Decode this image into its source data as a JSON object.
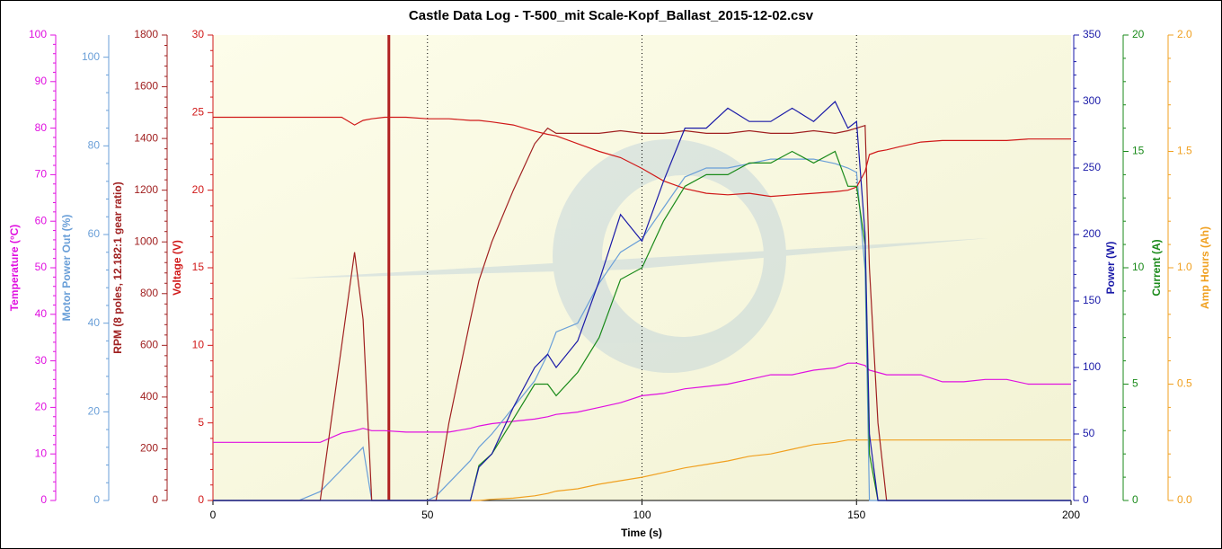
{
  "chart_data": {
    "type": "line",
    "title": "Castle Data Log - T-500_mit Scale-Kopf_Ballast_2015-12-02.csv",
    "x_label": "Time (s)",
    "xlim": [
      0,
      200
    ],
    "xticks": [
      0,
      50,
      100,
      150,
      200
    ],
    "grid": true,
    "cursor": 41,
    "x": [
      0,
      5,
      10,
      15,
      20,
      25,
      30,
      33,
      35,
      37,
      40,
      45,
      50,
      52,
      55,
      60,
      62,
      65,
      70,
      75,
      78,
      80,
      85,
      90,
      95,
      100,
      105,
      110,
      115,
      120,
      125,
      130,
      135,
      140,
      145,
      148,
      150,
      152,
      153,
      155,
      157,
      160,
      165,
      170,
      175,
      180,
      185,
      190,
      195,
      200
    ],
    "series": [
      {
        "name": "Temperature (°C)",
        "color": "#e010e0",
        "side": "left",
        "ylim": [
          0,
          100
        ],
        "yticks": [
          0,
          10,
          20,
          30,
          40,
          50,
          60,
          70,
          80,
          90,
          100
        ],
        "values": [
          12.5,
          12.5,
          12.5,
          12.5,
          12.5,
          12.5,
          14.5,
          15,
          15.5,
          15,
          15,
          14.7,
          14.7,
          14.7,
          14.7,
          15.5,
          16,
          16.5,
          17,
          17.5,
          18,
          18.5,
          19,
          20,
          21,
          22.5,
          23,
          24,
          24.5,
          25,
          26,
          27,
          27,
          28,
          28.5,
          29.5,
          29.5,
          29,
          28,
          27.5,
          27,
          27,
          27,
          25.5,
          25.5,
          26,
          26,
          25,
          25,
          25
        ]
      },
      {
        "name": "Motor Power Out (%)",
        "color": "#6a9fd8",
        "side": "left",
        "ylim": [
          0,
          105
        ],
        "yticks": [
          0,
          20,
          40,
          60,
          80,
          100
        ],
        "values": [
          0,
          0,
          0,
          0,
          0,
          2,
          7,
          10,
          12,
          0,
          0,
          0,
          0,
          1,
          4,
          9,
          12,
          15,
          21,
          27,
          33,
          38,
          40,
          49,
          56,
          59,
          66,
          73,
          75,
          75,
          76,
          77,
          77,
          77,
          76,
          75,
          74,
          52,
          0,
          0,
          0,
          0,
          0,
          0,
          0,
          0,
          0,
          0,
          0,
          0
        ]
      },
      {
        "name": "RPM (8 poles, 12.182:1 gear ratio)",
        "color": "#a02020",
        "side": "left",
        "ylim": [
          0,
          1800
        ],
        "yticks": [
          0,
          200,
          400,
          600,
          800,
          1000,
          1200,
          1400,
          1600,
          1800
        ],
        "values": [
          0,
          0,
          0,
          0,
          0,
          0,
          600,
          960,
          700,
          0,
          0,
          0,
          0,
          0,
          300,
          700,
          850,
          1000,
          1200,
          1380,
          1440,
          1420,
          1420,
          1420,
          1430,
          1420,
          1420,
          1430,
          1420,
          1420,
          1430,
          1420,
          1420,
          1430,
          1420,
          1430,
          1440,
          1450,
          900,
          300,
          0,
          0,
          0,
          0,
          0,
          0,
          0,
          0,
          0,
          0
        ]
      },
      {
        "name": "Voltage (V)",
        "color": "#d01818",
        "side": "left",
        "ylim": [
          0,
          30
        ],
        "yticks": [
          0,
          5,
          10,
          15,
          20,
          25,
          30
        ],
        "values": [
          24.7,
          24.7,
          24.7,
          24.7,
          24.7,
          24.7,
          24.7,
          24.2,
          24.5,
          24.6,
          24.7,
          24.7,
          24.6,
          24.6,
          24.6,
          24.5,
          24.5,
          24.4,
          24.2,
          23.8,
          23.6,
          23.5,
          23,
          22.5,
          22.1,
          21.4,
          20.6,
          20.1,
          19.8,
          19.7,
          19.8,
          19.6,
          19.7,
          19.8,
          19.9,
          20,
          20.2,
          21.2,
          22.3,
          22.5,
          22.6,
          22.8,
          23.1,
          23.2,
          23.2,
          23.2,
          23.2,
          23.3,
          23.3,
          23.3
        ]
      },
      {
        "name": "Power (W)",
        "color": "#1a1aa8",
        "side": "right",
        "ylim": [
          0,
          350
        ],
        "yticks": [
          0,
          50,
          100,
          150,
          200,
          250,
          300,
          350
        ],
        "values": [
          0,
          0,
          0,
          0,
          0,
          0,
          0,
          0,
          0,
          0,
          0,
          0,
          0,
          0,
          0,
          0,
          25,
          35,
          70,
          100,
          110,
          100,
          120,
          165,
          215,
          195,
          240,
          280,
          280,
          295,
          285,
          285,
          295,
          285,
          300,
          280,
          285,
          200,
          50,
          0,
          0,
          0,
          0,
          0,
          0,
          0,
          0,
          0,
          0,
          0
        ]
      },
      {
        "name": "Current (A)",
        "color": "#1a8a1a",
        "side": "right",
        "ylim": [
          0,
          20
        ],
        "yticks": [
          0,
          5,
          10,
          15,
          20
        ],
        "values": [
          0,
          0,
          0,
          0,
          0,
          0,
          0,
          0,
          0,
          0,
          0,
          0,
          0,
          0,
          0,
          0,
          1.5,
          2,
          3.5,
          5,
          5,
          4.5,
          5.5,
          7,
          9.5,
          10,
          12,
          13.5,
          14,
          14,
          14.5,
          14.5,
          15,
          14.5,
          15,
          13.5,
          13.5,
          11,
          2,
          0,
          0,
          0,
          0,
          0,
          0,
          0,
          0,
          0,
          0,
          0
        ]
      },
      {
        "name": "Amp Hours (Ah)",
        "color": "#f0a020",
        "side": "right",
        "ylim": [
          0,
          2
        ],
        "yticks": [
          {
            "value": 0,
            "label": "0.0"
          },
          0.5,
          {
            "value": 1,
            "label": "1.0"
          },
          1.5,
          {
            "value": 2,
            "label": "2.0"
          }
        ],
        "values": [
          0,
          0,
          0,
          0,
          0,
          0,
          0,
          0,
          0,
          0,
          0,
          0,
          0,
          0,
          0,
          0,
          0,
          0.005,
          0.01,
          0.02,
          0.03,
          0.04,
          0.05,
          0.07,
          0.085,
          0.1,
          0.12,
          0.14,
          0.155,
          0.17,
          0.19,
          0.2,
          0.22,
          0.24,
          0.25,
          0.26,
          0.26,
          0.26,
          0.26,
          0.26,
          0.26,
          0.26,
          0.26,
          0.26,
          0.26,
          0.26,
          0.26,
          0.26,
          0.26,
          0.26
        ]
      }
    ]
  }
}
